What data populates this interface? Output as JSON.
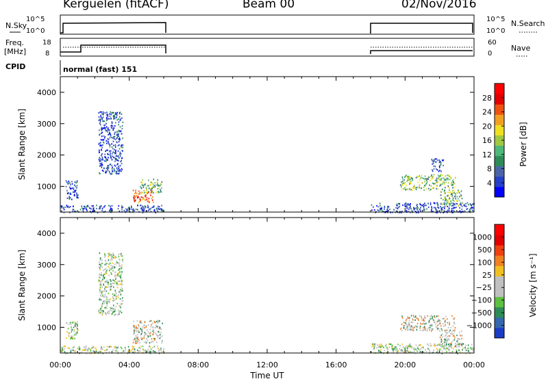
{
  "header": {
    "station": "Kerguelen (fitACF)",
    "beam": "Beam 00",
    "date": "02/Nov/2016"
  },
  "nsky_panel": {
    "left_label": "N.Sky",
    "right_label": "N.Search",
    "left_ticks": [
      "10^5",
      "10^0"
    ],
    "right_ticks": [
      "10^5",
      "10^0"
    ]
  },
  "freq_panel": {
    "left_label_top": "Freq.",
    "left_label_bottom": "[MHz]",
    "right_label": "Nave",
    "left_ticks": [
      18,
      8
    ],
    "right_ticks": [
      60,
      0
    ]
  },
  "cpid_panel": {
    "label": "CPID",
    "program": "normal (fast) 151"
  },
  "x_axis": {
    "label": "Time UT",
    "ticks": [
      "00:00",
      "04:00",
      "08:00",
      "12:00",
      "16:00",
      "20:00",
      "00:00"
    ]
  },
  "chart_data": [
    {
      "type": "heatmap",
      "name": "power",
      "ylabel": "Slant Range [km]",
      "yticks": [
        1000,
        2000,
        3000,
        4000
      ],
      "ylim": [
        180,
        4500
      ],
      "xlim_hours": [
        0,
        24
      ],
      "colorbar": {
        "label": "Power [dB]",
        "ticks": [
          4,
          8,
          12,
          16,
          20,
          24,
          28
        ],
        "range": [
          0,
          32
        ],
        "colors": [
          "#0000ff",
          "#2640c8",
          "#4a64a8",
          "#2e8b57",
          "#4db87a",
          "#a0c840",
          "#f0e020",
          "#f0a020",
          "#f05010",
          "#e00000",
          "#ff0000"
        ]
      },
      "clusters": [
        {
          "t": [
            0.0,
            6.0
          ],
          "range": [
            180,
            420
          ],
          "level": "low"
        },
        {
          "t": [
            0.3,
            1.0
          ],
          "range": [
            600,
            1200
          ],
          "level": "low"
        },
        {
          "t": [
            4.2,
            5.4
          ],
          "range": [
            500,
            900
          ],
          "level": "high"
        },
        {
          "t": [
            4.6,
            5.9
          ],
          "range": [
            800,
            1250
          ],
          "level": "mid"
        },
        {
          "t": [
            2.2,
            3.6
          ],
          "range": [
            1400,
            3400
          ],
          "level": "low"
        },
        {
          "t": [
            18.0,
            24.0
          ],
          "range": [
            180,
            500
          ],
          "level": "low"
        },
        {
          "t": [
            19.7,
            22.9
          ],
          "range": [
            900,
            1400
          ],
          "level": "mid"
        },
        {
          "t": [
            22.0,
            23.3
          ],
          "range": [
            400,
            900
          ],
          "level": "mid"
        },
        {
          "t": [
            21.5,
            22.2
          ],
          "range": [
            1500,
            1900
          ],
          "level": "low"
        }
      ]
    },
    {
      "type": "heatmap",
      "name": "velocity",
      "ylabel": "Slant Range [km]",
      "yticks": [
        1000,
        2000,
        3000,
        4000
      ],
      "ylim": [
        180,
        4500
      ],
      "xlim_hours": [
        0,
        24
      ],
      "colorbar": {
        "label": "Velocity [m s⁻¹]",
        "ticks": [
          "1000",
          "500",
          "100",
          "25",
          "−25",
          "−100",
          "−500",
          "−1000"
        ],
        "colors": [
          "#1a3cc8",
          "#3468b0",
          "#2e8b57",
          "#5cc040",
          "#c0c0c0",
          "#c0c0c0",
          "#f0c020",
          "#f08020",
          "#f04010",
          "#e00000",
          "#ff0000"
        ]
      },
      "clusters": [
        {
          "t": [
            0.0,
            6.0
          ],
          "range": [
            180,
            420
          ],
          "level": "low"
        },
        {
          "t": [
            0.3,
            1.0
          ],
          "range": [
            600,
            1200
          ],
          "level": "low"
        },
        {
          "t": [
            4.2,
            5.9
          ],
          "range": [
            500,
            1250
          ],
          "level": "mid"
        },
        {
          "t": [
            2.2,
            3.6
          ],
          "range": [
            1400,
            3400
          ],
          "level": "low"
        },
        {
          "t": [
            18.0,
            24.0
          ],
          "range": [
            180,
            500
          ],
          "level": "low"
        },
        {
          "t": [
            19.7,
            22.9
          ],
          "range": [
            900,
            1400
          ],
          "level": "mid"
        },
        {
          "t": [
            22.0,
            23.3
          ],
          "range": [
            400,
            900
          ],
          "level": "mid"
        }
      ]
    }
  ]
}
